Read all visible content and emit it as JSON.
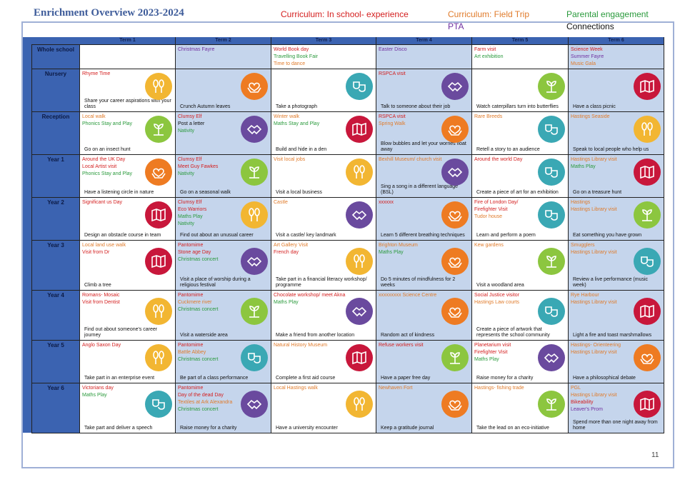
{
  "title": "Enrichment Overview 2023-2024",
  "key": [
    {
      "label": "Curriculum: In school- experience",
      "color": "#d42020"
    },
    {
      "label": "Curriculum: Field Trip",
      "color": "#e07b2b"
    },
    {
      "label": "Parental engagement",
      "color": "#2a9a3c"
    },
    {
      "label": "PTA",
      "color": "#7030a0"
    },
    {
      "label": "Connections",
      "color": "#111111"
    }
  ],
  "page_number": "11",
  "terms": [
    "Term 1",
    "Term 2",
    "Term 3",
    "Term 4",
    "Term 5",
    "Term 6"
  ],
  "icon_colors": {
    "gold": "#f2b632",
    "orange": "#ee7b22",
    "teal": "#3aa8b4",
    "purple": "#6a4a9e",
    "green": "#8cc63f",
    "crimson": "#c8173b"
  },
  "rows": [
    {
      "name": "Whole school",
      "cells": [
        {
          "lines": [],
          "activity": "",
          "icon": ""
        },
        {
          "lines": [
            {
              "t": "Christmas Fayre",
              "c": "p"
            }
          ],
          "activity": "",
          "icon": ""
        },
        {
          "lines": [
            {
              "t": "World Book day",
              "c": "r"
            },
            {
              "t": "Travelling Book Fair",
              "c": "g"
            },
            {
              "t": "Time to dance",
              "c": "o"
            }
          ],
          "activity": "",
          "icon": ""
        },
        {
          "lines": [
            {
              "t": "Easter Disco",
              "c": "p"
            }
          ],
          "activity": "",
          "icon": ""
        },
        {
          "lines": [
            {
              "t": "Farm visit",
              "c": "r"
            },
            {
              "t": "Art exhibition",
              "c": "g"
            }
          ],
          "activity": "",
          "icon": ""
        },
        {
          "lines": [
            {
              "t": "Science Week",
              "c": "r"
            },
            {
              "t": "Summer Fayre",
              "c": "p"
            },
            {
              "t": "Music Gala",
              "c": "o"
            }
          ],
          "activity": "",
          "icon": ""
        }
      ]
    },
    {
      "name": "Nursery",
      "cells": [
        {
          "lines": [
            {
              "t": "Rhyme Time",
              "c": "r"
            }
          ],
          "activity": "Share your career aspirations with your class",
          "icon": "gold"
        },
        {
          "lines": [],
          "activity": "Crunch Autumn leaves",
          "icon": "orange"
        },
        {
          "lines": [],
          "activity": "Take a photograph",
          "icon": "teal"
        },
        {
          "lines": [
            {
              "t": "RSPCA visit",
              "c": "r"
            }
          ],
          "activity": "Talk to someone about their job",
          "icon": "purple"
        },
        {
          "lines": [],
          "activity": "Watch caterpillars turn into butterflies",
          "icon": "green"
        },
        {
          "lines": [],
          "activity": "Have a class picnic",
          "icon": "crimson"
        }
      ]
    },
    {
      "name": "Reception",
      "cells": [
        {
          "lines": [
            {
              "t": "Local walk",
              "c": "o"
            },
            {
              "t": "Phonics Stay and Play",
              "c": "g"
            }
          ],
          "activity": "Go on an insect hunt",
          "icon": "green"
        },
        {
          "lines": [
            {
              "t": "Clumsy Elf",
              "c": "r"
            },
            {
              "t": "Post a letter",
              "c": "k"
            },
            {
              "t": "Nativity",
              "c": "g"
            }
          ],
          "activity": "",
          "icon": "purple"
        },
        {
          "lines": [
            {
              "t": "Winter walk",
              "c": "o"
            },
            {
              "t": "Maths Stay and Play",
              "c": "g"
            }
          ],
          "activity": "Build and hide in a den",
          "icon": "crimson"
        },
        {
          "lines": [
            {
              "t": "RSPCA visit",
              "c": "r"
            },
            {
              "t": "Spring Walk",
              "c": "o"
            }
          ],
          "activity": "Blow bubbles and let your worries float away",
          "icon": "orange"
        },
        {
          "lines": [
            {
              "t": "Rare Breeds",
              "c": "o"
            }
          ],
          "activity": "Retell a story to an audience",
          "icon": "teal"
        },
        {
          "lines": [
            {
              "t": "Hastings Seaside",
              "c": "o"
            }
          ],
          "activity": "Speak to local people who help us",
          "icon": "gold"
        }
      ]
    },
    {
      "name": "Year 1",
      "cells": [
        {
          "lines": [
            {
              "t": "Around the UK Day",
              "c": "r"
            },
            {
              "t": "Local Artist visit",
              "c": "r"
            },
            {
              "t": "Phonics Stay and Play",
              "c": "g"
            }
          ],
          "activity": "Have a listening circle in nature",
          "icon": "orange"
        },
        {
          "lines": [
            {
              "t": "Clumsy Elf",
              "c": "r"
            },
            {
              "t": "Meet Guy Fawkes",
              "c": "r"
            },
            {
              "t": "Nativity",
              "c": "g"
            }
          ],
          "activity": "Go on a seasonal walk",
          "icon": "green"
        },
        {
          "lines": [
            {
              "t": "Visit local jobs",
              "c": "o"
            }
          ],
          "activity": "Visit a local business",
          "icon": "gold"
        },
        {
          "lines": [
            {
              "t": "Bexhill Museum/ church visit",
              "c": "o"
            }
          ],
          "activity": "Sing a song in a different language (BSL)",
          "icon": "purple"
        },
        {
          "lines": [
            {
              "t": "Around the world Day",
              "c": "r"
            }
          ],
          "activity": "Create a piece of art for an exhibition",
          "icon": "teal"
        },
        {
          "lines": [
            {
              "t": "Hastings Library visit",
              "c": "o"
            },
            {
              "t": "Maths Play",
              "c": "g"
            }
          ],
          "activity": "Go on a treasure hunt",
          "icon": "crimson"
        }
      ]
    },
    {
      "name": "Year 2",
      "cells": [
        {
          "lines": [
            {
              "t": "Significant us Day",
              "c": "r"
            }
          ],
          "activity": "Design an obstacle course in team",
          "icon": "crimson"
        },
        {
          "lines": [
            {
              "t": "Clumsy Elf",
              "c": "r"
            },
            {
              "t": "Eco Warriors",
              "c": "r"
            },
            {
              "t": "Maths Play",
              "c": "g"
            },
            {
              "t": "Nativity",
              "c": "g"
            }
          ],
          "activity": "Find out about an unusual career",
          "icon": "gold"
        },
        {
          "lines": [
            {
              "t": "Castle",
              "c": "o"
            }
          ],
          "activity": "Visit a castle/ key landmark",
          "icon": "purple"
        },
        {
          "lines": [
            {
              "t": "xxxxxx",
              "c": "r"
            }
          ],
          "activity": "Learn 5 different breathing techniques",
          "icon": "orange"
        },
        {
          "lines": [
            {
              "t": "Fire of London Day/",
              "c": "r"
            },
            {
              "t": "Firefighter Visit",
              "c": "r"
            },
            {
              "t": "Tudor house",
              "c": "o"
            }
          ],
          "activity": "Learn and perform a poem",
          "icon": "teal"
        },
        {
          "lines": [
            {
              "t": "Hastings",
              "c": "o"
            },
            {
              "t": "Hastings Library visit",
              "c": "o"
            }
          ],
          "activity": "Eat something you have grown",
          "icon": "green"
        }
      ]
    },
    {
      "name": "Year 3",
      "cells": [
        {
          "lines": [
            {
              "t": "Local land use walk",
              "c": "o"
            },
            {
              "t": "Visit from Dr",
              "c": "r"
            }
          ],
          "activity": "Climb a tree",
          "icon": "crimson"
        },
        {
          "lines": [
            {
              "t": "Pantomime",
              "c": "r"
            },
            {
              "t": "Stone age Day",
              "c": "r"
            },
            {
              "t": "Christmas concert",
              "c": "g"
            }
          ],
          "activity": "Visit a place of worship during a religious festival",
          "icon": "purple"
        },
        {
          "lines": [
            {
              "t": "Art Gallery Visit",
              "c": "o"
            },
            {
              "t": "French day",
              "c": "r"
            }
          ],
          "activity": "Take part in a financial literacy workshop/ programme",
          "icon": "gold"
        },
        {
          "lines": [
            {
              "t": "Brighton Museum",
              "c": "o"
            },
            {
              "t": "Maths Play",
              "c": "g"
            }
          ],
          "activity": "Do 5 minutes of mindfulness for 2 weeks",
          "icon": "orange"
        },
        {
          "lines": [
            {
              "t": "Kew gardens",
              "c": "o"
            }
          ],
          "activity": "Visit a woodland area",
          "icon": "green"
        },
        {
          "lines": [
            {
              "t": "Smugglers",
              "c": "o"
            },
            {
              "t": "Hastings Library visit",
              "c": "o"
            }
          ],
          "activity": "Review a live performance (music week)",
          "icon": "teal"
        }
      ]
    },
    {
      "name": "Year 4",
      "cells": [
        {
          "lines": [
            {
              "t": "Romans- Mosaic",
              "c": "r"
            },
            {
              "t": "Visit from Dentist",
              "c": "r"
            }
          ],
          "activity": "Find out about someone's career journey",
          "icon": "gold"
        },
        {
          "lines": [
            {
              "t": "Pantomime",
              "c": "r"
            },
            {
              "t": "Cuckmere river",
              "c": "o"
            },
            {
              "t": "Christmas concert",
              "c": "g"
            }
          ],
          "activity": "Visit a waterside area",
          "icon": "green"
        },
        {
          "lines": [
            {
              "t": "Chocolate workshop/ meet Akna",
              "c": "r"
            },
            {
              "t": "Maths Play",
              "c": "g"
            }
          ],
          "activity": "Make a friend from another location",
          "icon": "purple"
        },
        {
          "lines": [
            {
              "t": "xxxxxxxxx Science Centre",
              "c": "o"
            }
          ],
          "activity": "Random act of kindness",
          "icon": "orange"
        },
        {
          "lines": [
            {
              "t": "Social Justice visitor",
              "c": "r"
            },
            {
              "t": "Hastings Law courts",
              "c": "o"
            }
          ],
          "activity": "Create a piece of artwork that represents the school community",
          "icon": "teal"
        },
        {
          "lines": [
            {
              "t": "Rye Harbour",
              "c": "o"
            },
            {
              "t": "Hastings Library visit",
              "c": "o"
            }
          ],
          "activity": "Light a fire and toast marshmallows",
          "icon": "crimson"
        }
      ]
    },
    {
      "name": "Year 5",
      "cells": [
        {
          "lines": [
            {
              "t": "Anglo Saxon Day",
              "c": "r"
            }
          ],
          "activity": "Take part in an enterprise event",
          "icon": "gold"
        },
        {
          "lines": [
            {
              "t": "Pantomime",
              "c": "r"
            },
            {
              "t": "Battle Abbey",
              "c": "o"
            },
            {
              "t": "Christmas concert",
              "c": "g"
            }
          ],
          "activity": "Be part of a class performance",
          "icon": "teal"
        },
        {
          "lines": [
            {
              "t": "Natural History Museum",
              "c": "o"
            }
          ],
          "activity": "Complete a first aid course",
          "icon": "crimson"
        },
        {
          "lines": [
            {
              "t": "Refuse workers visit",
              "c": "r"
            }
          ],
          "activity": "Have a paper free day",
          "icon": "green"
        },
        {
          "lines": [
            {
              "t": "Planetarium visit",
              "c": "r"
            },
            {
              "t": "Firefighter Visit",
              "c": "r"
            },
            {
              "t": "Maths Play",
              "c": "g"
            }
          ],
          "activity": "Raise money for a charity",
          "icon": "purple"
        },
        {
          "lines": [
            {
              "t": "Hastings- Orienteering",
              "c": "o"
            },
            {
              "t": "Hastings Library visit",
              "c": "o"
            }
          ],
          "activity": "Have a philosophical debate",
          "icon": "orange"
        }
      ]
    },
    {
      "name": "Year 6",
      "cells": [
        {
          "lines": [
            {
              "t": "Victorians day",
              "c": "r"
            },
            {
              "t": "",
              "c": "k"
            },
            {
              "t": "Maths Play",
              "c": "g"
            }
          ],
          "activity": "Take part and deliver a speech",
          "icon": "teal"
        },
        {
          "lines": [
            {
              "t": "Pantomime",
              "c": "r"
            },
            {
              "t": "Day of the dead Day",
              "c": "r"
            },
            {
              "t": "Textiles at Ark Alexandra",
              "c": "o"
            },
            {
              "t": "Christmas concert",
              "c": "g"
            }
          ],
          "activity": "Raise money for a charity",
          "icon": "purple"
        },
        {
          "lines": [
            {
              "t": "Local Hastings walk",
              "c": "o"
            }
          ],
          "activity": "Have a university encounter",
          "icon": "gold"
        },
        {
          "lines": [
            {
              "t": "Newhaven Fort",
              "c": "o"
            }
          ],
          "activity": "Keep a gratitude journal",
          "icon": "orange"
        },
        {
          "lines": [
            {
              "t": "Hastings- fishing trade",
              "c": "o"
            }
          ],
          "activity": "Take the lead on an eco-initiative",
          "icon": "green"
        },
        {
          "lines": [
            {
              "t": "PGL",
              "c": "o"
            },
            {
              "t": "Hastings Library visit",
              "c": "o"
            },
            {
              "t": "Bikeability",
              "c": "r"
            },
            {
              "t": "Leaver's Prom",
              "c": "p"
            }
          ],
          "activity": "Spend more than one night away from home",
          "icon": "crimson"
        }
      ]
    }
  ]
}
